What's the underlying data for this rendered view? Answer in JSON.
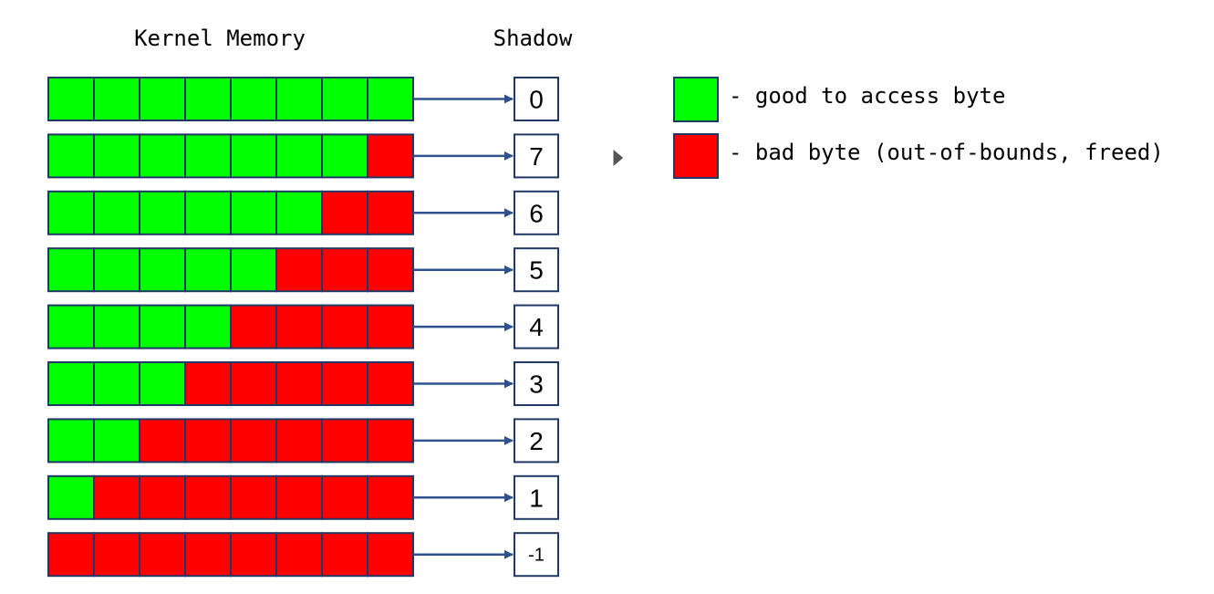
{
  "headers": {
    "memory": "Kernel Memory",
    "shadow": "Shadow"
  },
  "colors": {
    "good": "#00ff00",
    "bad": "#ff0000",
    "border": "#1f3864",
    "arrow": "#2f528f"
  },
  "rows": [
    {
      "good_bytes": 8,
      "shadow": "0"
    },
    {
      "good_bytes": 7,
      "shadow": "7"
    },
    {
      "good_bytes": 6,
      "shadow": "6"
    },
    {
      "good_bytes": 5,
      "shadow": "5"
    },
    {
      "good_bytes": 4,
      "shadow": "4"
    },
    {
      "good_bytes": 3,
      "shadow": "3"
    },
    {
      "good_bytes": 2,
      "shadow": "2"
    },
    {
      "good_bytes": 1,
      "shadow": "1"
    },
    {
      "good_bytes": 0,
      "shadow": "-1"
    }
  ],
  "bytes_per_row": 8,
  "legend": {
    "good": "- good to access byte",
    "bad": "- bad byte (out-of-bounds, freed)"
  }
}
